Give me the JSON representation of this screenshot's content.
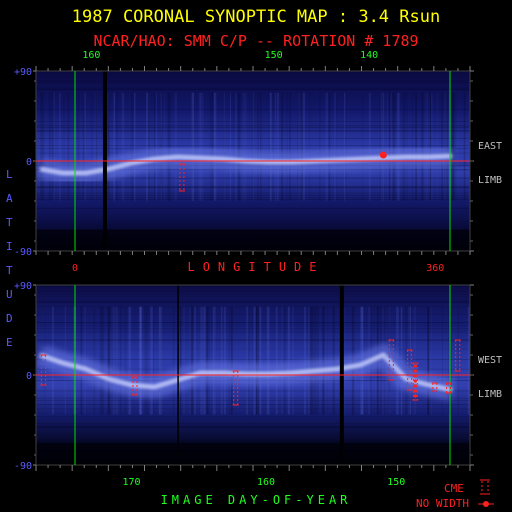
{
  "title": "1987 CORONAL SYNOPTIC MAP : 3.4 Rsun",
  "subtitle": "NCAR/HAO: SMM C/P -- ROTATION # 1789",
  "colors": {
    "title": "#ffff00",
    "subtitle": "#ff2020",
    "axis_text": "#5a5aff",
    "tick_text": "#c0c0c0",
    "green_text": "#20ff20",
    "red_text": "#ff2020",
    "grid_green": "#00e000",
    "equator": "#ff2020",
    "cme_marker": "#ff2020"
  },
  "latitude_label": "LATITUDE",
  "longitude_label": "LONGITUDE",
  "doy_label": "IMAGE DAY-OF-YEAR",
  "cme_label": "CME",
  "no_width_label": "NO WIDTH",
  "chart_data": [
    {
      "type": "heatmap",
      "panel": "east_limb",
      "side_labels": [
        "EAST",
        "LIMB"
      ],
      "top_axis_ticks": [
        "160",
        "150",
        "140"
      ],
      "bottom_axis_ticks": [
        "0",
        "360"
      ],
      "y_ticks": [
        "+90",
        "0",
        "-90"
      ],
      "ylim": [
        -90,
        90
      ],
      "longitude_range": [
        0,
        360
      ],
      "brightness_band": {
        "lon": [
          0,
          20,
          40,
          60,
          80,
          100,
          120,
          140,
          160,
          180,
          200,
          220,
          240,
          260,
          280,
          300,
          320,
          340,
          360
        ],
        "lat": [
          -8,
          -12,
          -12,
          -8,
          -2,
          2,
          4,
          3,
          2,
          0,
          -1,
          -1,
          0,
          1,
          2,
          3,
          4,
          4,
          5
        ]
      },
      "cme_events": [
        {
          "lon": 124,
          "lat_range": [
            -30,
            -3
          ],
          "no_width": false
        },
        {
          "lon": 300,
          "lat": 6,
          "no_width": true
        }
      ]
    },
    {
      "type": "heatmap",
      "panel": "west_limb",
      "side_labels": [
        "WEST",
        "LIMB"
      ],
      "x_ticks": [
        "170",
        "160",
        "150"
      ],
      "y_ticks": [
        "+90",
        "0",
        "-90"
      ],
      "ylim": [
        -90,
        90
      ],
      "brightness_band": {
        "lon": [
          0,
          20,
          40,
          60,
          80,
          100,
          120,
          140,
          160,
          180,
          200,
          220,
          240,
          260,
          280,
          300,
          320,
          340,
          360
        ],
        "lat": [
          20,
          12,
          6,
          -4,
          -10,
          -12,
          -5,
          2,
          2,
          1,
          1,
          2,
          4,
          6,
          10,
          20,
          -4,
          -10,
          -15
        ]
      },
      "cme_events": [
        {
          "lon": 3,
          "lat_range": [
            -10,
            20
          ],
          "no_width": false
        },
        {
          "lon": 83,
          "lat_range": [
            -20,
            -2
          ],
          "no_width": false
        },
        {
          "lon": 171,
          "lat_range": [
            -30,
            4
          ],
          "no_width": false
        },
        {
          "lon": 307,
          "lat_range": [
            -5,
            35
          ],
          "no_width": false
        },
        {
          "lon": 323,
          "lat_range": [
            -15,
            25
          ],
          "no_width": false
        },
        {
          "lon": 328,
          "lat_range": [
            -25,
            12
          ],
          "no_width": true
        },
        {
          "lon": 345,
          "lat_range": [
            -16,
            -8
          ],
          "no_width": false
        },
        {
          "lon": 357,
          "lat_range": [
            -18,
            -8
          ],
          "no_width": false
        },
        {
          "lon": 365,
          "lat_range": [
            4,
            35
          ],
          "no_width": false
        }
      ]
    }
  ]
}
